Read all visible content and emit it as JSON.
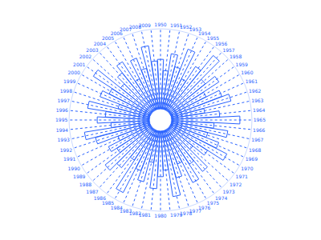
{
  "chart_data": {
    "type": "barpolar",
    "categories": [
      "1950",
      "1951",
      "1952",
      "1953",
      "1954",
      "1955",
      "1956",
      "1957",
      "1958",
      "1959",
      "1960",
      "1961",
      "1962",
      "1963",
      "1964",
      "1965",
      "1966",
      "1967",
      "1968",
      "1969",
      "1970",
      "1971",
      "1972",
      "1973",
      "1974",
      "1975",
      "1976",
      "1977",
      "1978",
      "1979",
      "1980",
      "1981",
      "1982",
      "1983",
      "1984",
      "1985",
      "1986",
      "1987",
      "1988",
      "1989",
      "1990",
      "1991",
      "1992",
      "1993",
      "1994",
      "1995",
      "1996",
      "1997",
      "1998",
      "1999",
      "2000",
      "2001",
      "2002",
      "2003",
      "2004",
      "2005",
      "2006",
      "2007",
      "2008",
      "2009"
    ],
    "values": [
      62,
      48,
      70,
      55,
      81,
      44,
      66,
      90,
      58,
      73,
      50,
      68,
      77,
      42,
      60,
      85,
      53,
      71,
      47,
      64,
      79,
      56,
      38,
      69,
      52,
      74,
      45,
      61,
      83,
      49,
      57,
      72,
      40,
      66,
      54,
      88,
      46,
      63,
      75,
      51,
      59,
      43,
      70,
      82,
      48,
      65,
      55,
      78,
      41,
      67,
      58,
      86,
      50,
      62,
      73,
      44,
      69,
      53,
      80,
      60
    ],
    "color": "#2962ff",
    "ylim": [
      0,
      100
    ],
    "yticks": [],
    "grid": true,
    "tick_labels": "x"
  }
}
